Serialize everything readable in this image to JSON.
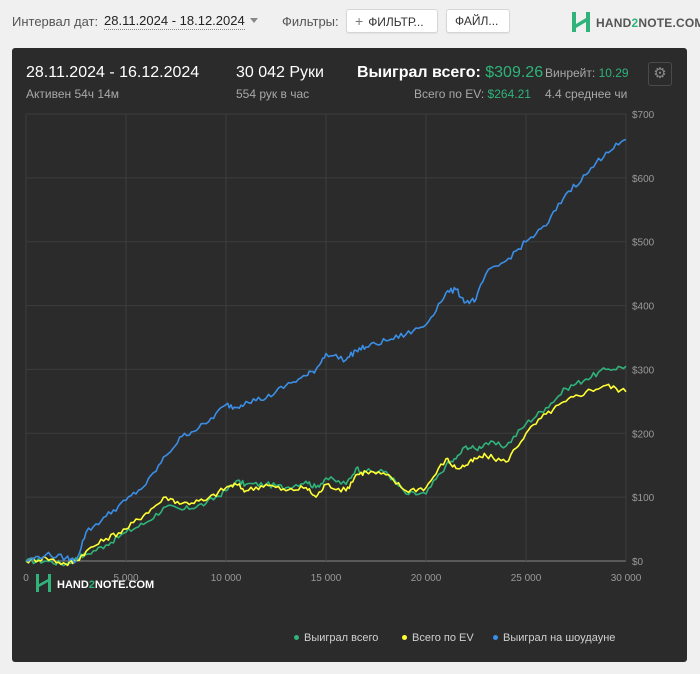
{
  "toolbar": {
    "interval_label": "Интервал дат:",
    "date_range": "28.11.2024 - 18.12.2024",
    "filters_label": "Фильтры:",
    "filter_button": "ФИЛЬТР...",
    "files_button": "ФАЙЛ...",
    "logo_text_a": "HAND",
    "logo_text_b": "2",
    "logo_text_c": "NOTE.COM"
  },
  "summary": {
    "period": "28.11.2024 - 16.12.2024",
    "active": "Активен 54ч 14м",
    "hands": "30 042 Руки",
    "hands_per_hour": "554 рук в час",
    "won_total_label": "Выиграл всего:",
    "won_total_value": "$309.26",
    "ev_label": "Всего по EV:",
    "ev_value": "$264.21",
    "winrate_label": "Винрейт:",
    "winrate_value": "10.29",
    "avg_label": "4.4 среднее чи"
  },
  "watermark": {
    "text_a": "HAND",
    "text_b": "2",
    "text_c": "NOTE.COM"
  },
  "colors": {
    "green": "#2fb37a",
    "yellow": "#ffff33",
    "blue": "#3a8ee6",
    "panel": "#2b2b2b"
  },
  "chart_data": {
    "type": "line",
    "xlim": [
      0,
      30000
    ],
    "ylim": [
      0,
      700
    ],
    "x_ticks": [
      0,
      5000,
      10000,
      15000,
      20000,
      25000,
      30000
    ],
    "x_tick_labels": [
      "0",
      "5 000",
      "10 000",
      "15 000",
      "20 000",
      "25 000",
      "30 000"
    ],
    "y_ticks": [
      0,
      100,
      200,
      300,
      400,
      500,
      600,
      700
    ],
    "y_tick_labels": [
      "$0",
      "$100",
      "$200",
      "$300",
      "$400",
      "$500",
      "$600",
      "$700"
    ],
    "grid": true,
    "legend_position": "bottom-right",
    "x": [
      0,
      1000,
      2000,
      2500,
      3000,
      4000,
      5000,
      6000,
      7000,
      7800,
      9000,
      10000,
      10500,
      11000,
      12000,
      13000,
      14000,
      14500,
      15000,
      16000,
      16500,
      17000,
      18000,
      19000,
      20000,
      21000,
      21500,
      22000,
      22500,
      23000,
      24000,
      25000,
      26000,
      27000,
      28000,
      29000,
      30000
    ],
    "series": [
      {
        "name": "Выиграл всего",
        "color": "#2fb37a",
        "values": [
          0,
          0,
          -5,
          5,
          10,
          25,
          45,
          60,
          85,
          80,
          90,
          110,
          125,
          120,
          120,
          115,
          125,
          115,
          130,
          120,
          145,
          140,
          140,
          105,
          105,
          150,
          160,
          180,
          175,
          185,
          180,
          215,
          240,
          270,
          285,
          300,
          305
        ]
      },
      {
        "name": "Всего по EV",
        "color": "#ffff33",
        "values": [
          0,
          5,
          -5,
          0,
          15,
          35,
          50,
          75,
          100,
          90,
          95,
          115,
          120,
          110,
          120,
          110,
          115,
          100,
          120,
          110,
          135,
          140,
          135,
          110,
          115,
          160,
          145,
          150,
          160,
          165,
          155,
          200,
          230,
          250,
          265,
          275,
          265
        ]
      },
      {
        "name": "Выиграл на шоудауне",
        "color": "#3a8ee6",
        "values": [
          0,
          10,
          5,
          0,
          45,
          70,
          95,
          120,
          165,
          195,
          215,
          245,
          240,
          250,
          255,
          275,
          290,
          300,
          325,
          315,
          330,
          335,
          345,
          355,
          370,
          420,
          425,
          405,
          410,
          450,
          470,
          500,
          525,
          575,
          605,
          640,
          660
        ]
      }
    ]
  }
}
